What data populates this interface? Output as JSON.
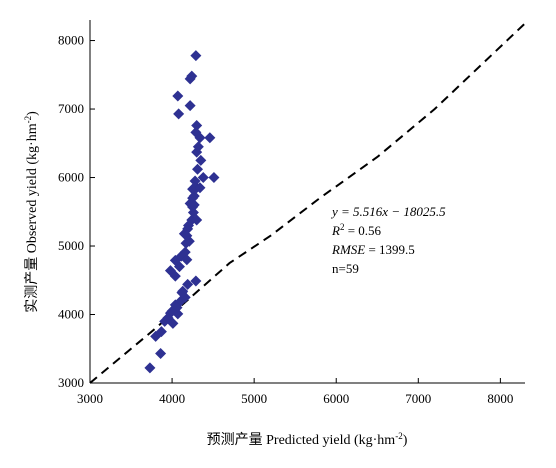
{
  "chart_data": {
    "type": "scatter",
    "title": "",
    "xlabel": "预测产量 Predicted yield (kg·hm",
    "xlabel_sup": "-2",
    "xlabel_end": ")",
    "ylabel": "实测产量 Observed yield (kg·hm",
    "ylabel_sup": "-2",
    "ylabel_end": ")",
    "xlim": [
      3000,
      8300
    ],
    "ylim": [
      3000,
      8300
    ],
    "x_ticks": [
      3000,
      4000,
      5000,
      6000,
      7000,
      8000
    ],
    "y_ticks": [
      3000,
      4000,
      5000,
      6000,
      7000,
      8000
    ],
    "x_tick_labels": [
      "3000",
      "4000",
      "5000",
      "6000",
      "7000",
      "8000"
    ],
    "y_tick_labels": [
      "3000",
      "4000",
      "5000",
      "6000",
      "7000",
      "8000"
    ],
    "grid": false,
    "marker_color": "#2e3192",
    "reference_line": {
      "style": "dashed",
      "color": "#000000",
      "points": [
        [
          3000,
          3000
        ],
        [
          3800,
          3800
        ],
        [
          4700,
          4750
        ],
        [
          5200,
          5150
        ],
        [
          5800,
          5700
        ],
        [
          6500,
          6300
        ],
        [
          7200,
          7000
        ],
        [
          8300,
          8250
        ]
      ]
    },
    "annotations": {
      "equation": "y = 5.516x − 18025.5",
      "r2_prefix": "R",
      "r2_sup": "2",
      "r2_value": " = 0.56",
      "rmse_label": "RMSE",
      "rmse_value": " = 1399.5",
      "n": "n=59"
    },
    "series": [
      {
        "points": [
          [
            3730,
            3220
          ],
          [
            3860,
            3430
          ],
          [
            3800,
            3680
          ],
          [
            3870,
            3750
          ],
          [
            3910,
            3900
          ],
          [
            3980,
            4020
          ],
          [
            4010,
            3870
          ],
          [
            4070,
            4010
          ],
          [
            4040,
            4140
          ],
          [
            4100,
            4190
          ],
          [
            4160,
            4250
          ],
          [
            4130,
            4340
          ],
          [
            4190,
            4440
          ],
          [
            4290,
            4490
          ],
          [
            3980,
            4640
          ],
          [
            4040,
            4560
          ],
          [
            4040,
            4790
          ],
          [
            4110,
            4850
          ],
          [
            4160,
            4910
          ],
          [
            4170,
            5040
          ],
          [
            4150,
            5180
          ],
          [
            4210,
            5070
          ],
          [
            4190,
            5250
          ],
          [
            4240,
            5380
          ],
          [
            4260,
            5490
          ],
          [
            4300,
            5380
          ],
          [
            4220,
            5620
          ],
          [
            4250,
            5570
          ],
          [
            4270,
            5730
          ],
          [
            4250,
            5830
          ],
          [
            4300,
            5850
          ],
          [
            4340,
            5850
          ],
          [
            4380,
            6000
          ],
          [
            4510,
            6000
          ],
          [
            4310,
            6120
          ],
          [
            4350,
            6250
          ],
          [
            4300,
            6370
          ],
          [
            4340,
            6580
          ],
          [
            4460,
            6580
          ],
          [
            4300,
            6760
          ],
          [
            4290,
            6660
          ],
          [
            4080,
            6930
          ],
          [
            4220,
            7050
          ],
          [
            4070,
            7190
          ],
          [
            4220,
            7440
          ],
          [
            4240,
            7480
          ],
          [
            4290,
            7780
          ],
          [
            4280,
            5950
          ],
          [
            4250,
            5700
          ],
          [
            4180,
            5150
          ],
          [
            4090,
            4700
          ],
          [
            4120,
            4320
          ],
          [
            4060,
            4100
          ],
          [
            3950,
            3950
          ],
          [
            4200,
            5300
          ],
          [
            4320,
            6450
          ],
          [
            4270,
            5600
          ],
          [
            4180,
            4800
          ],
          [
            4000,
            4050
          ]
        ]
      }
    ]
  }
}
